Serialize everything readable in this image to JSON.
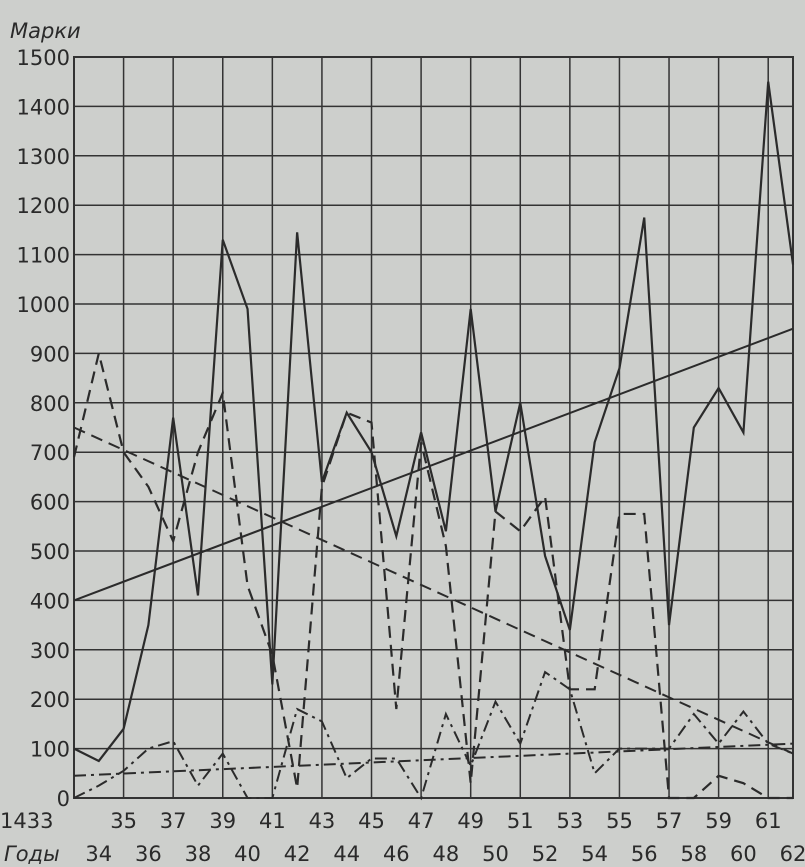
{
  "chart_data": {
    "type": "line",
    "ylabel": "Марки",
    "xlabel": "Годы",
    "ylim": [
      0,
      1500
    ],
    "xlim": [
      1433,
      1462
    ],
    "y_ticks": [
      "0",
      "100",
      "200",
      "300",
      "400",
      "500",
      "600",
      "700",
      "800",
      "900",
      "1000",
      "1100",
      "1200",
      "1300",
      "1400",
      "1500"
    ],
    "x_ticks_top": [
      "1433",
      "35",
      "37",
      "39",
      "41",
      "43",
      "45",
      "47",
      "49",
      "51",
      "53",
      "55",
      "57",
      "59",
      "61"
    ],
    "x_ticks_bottom": [
      "34",
      "36",
      "38",
      "40",
      "42",
      "44",
      "46",
      "48",
      "50",
      "52",
      "54",
      "56",
      "58",
      "60",
      "62"
    ],
    "grid": true,
    "series": [
      {
        "style": "solid",
        "x": [
          1433,
          1434,
          1435,
          1436,
          1437,
          1438,
          1439,
          1440,
          1441,
          1442,
          1443,
          1444,
          1445,
          1446,
          1447,
          1448,
          1449,
          1450,
          1451,
          1452,
          1453,
          1454,
          1455,
          1456,
          1457,
          1458,
          1459,
          1460,
          1461,
          1462
        ],
        "values": [
          100,
          75,
          140,
          350,
          770,
          410,
          1130,
          990,
          230,
          1145,
          640,
          780,
          700,
          530,
          740,
          540,
          990,
          580,
          800,
          490,
          340,
          720,
          870,
          1175,
          350,
          750,
          830,
          740,
          1450,
          1080
        ]
      },
      {
        "style": "dashed",
        "x": [
          1433,
          1434,
          1435,
          1436,
          1437,
          1438,
          1439,
          1440,
          1441,
          1442,
          1443,
          1444,
          1445,
          1446,
          1447,
          1448,
          1449,
          1450,
          1451,
          1452,
          1453,
          1454,
          1455,
          1456,
          1457,
          1458,
          1459,
          1460,
          1461,
          1462
        ],
        "values": [
          690,
          900,
          700,
          630,
          520,
          700,
          820,
          430,
          290,
          20,
          630,
          780,
          760,
          180,
          720,
          510,
          30,
          580,
          540,
          610,
          220,
          220,
          575,
          575,
          0,
          0,
          45,
          30,
          0,
          0
        ]
      },
      {
        "style": "dash-dot",
        "x": [
          1433,
          1434,
          1435,
          1436,
          1437,
          1438,
          1439,
          1440,
          1441,
          1442,
          1443,
          1444,
          1445,
          1446,
          1447,
          1448,
          1449,
          1450,
          1451,
          1452,
          1453,
          1454,
          1455,
          1456,
          1457,
          1458,
          1459,
          1460,
          1461,
          1462
        ],
        "values": [
          0,
          25,
          55,
          100,
          115,
          25,
          90,
          0,
          0,
          180,
          155,
          40,
          80,
          80,
          0,
          170,
          65,
          195,
          110,
          255,
          220,
          50,
          100,
          100,
          100,
          170,
          110,
          175,
          110,
          90
        ]
      }
    ],
    "trend_lines": [
      {
        "style": "solid",
        "x": [
          1433,
          1462
        ],
        "values": [
          400,
          950
        ]
      },
      {
        "style": "dashed",
        "x": [
          1433,
          1462
        ],
        "values": [
          750,
          90
        ]
      },
      {
        "style": "dash-dot",
        "x": [
          1433,
          1462
        ],
        "values": [
          45,
          110
        ]
      }
    ]
  }
}
